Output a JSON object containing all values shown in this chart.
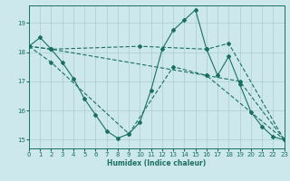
{
  "xlabel": "Humidex (Indice chaleur)",
  "bg_color": "#cce8ec",
  "grid_color": "#aacccc",
  "line_color": "#1a7060",
  "xlim": [
    0,
    23
  ],
  "ylim": [
    14.7,
    19.6
  ],
  "yticks": [
    15,
    16,
    17,
    18,
    19
  ],
  "xticks": [
    0,
    1,
    2,
    3,
    4,
    5,
    6,
    7,
    8,
    9,
    10,
    11,
    12,
    13,
    14,
    15,
    16,
    17,
    18,
    19,
    20,
    21,
    22,
    23
  ],
  "line1_x": [
    0,
    1,
    2,
    3,
    4,
    5,
    6,
    7,
    8,
    9,
    10,
    11,
    12,
    13,
    14,
    15,
    16,
    17,
    18,
    19,
    20,
    21,
    22,
    23
  ],
  "line1_y": [
    18.2,
    18.5,
    18.1,
    17.65,
    17.1,
    16.4,
    15.85,
    15.3,
    15.05,
    15.2,
    15.6,
    16.7,
    18.1,
    18.75,
    19.1,
    19.45,
    18.1,
    17.2,
    17.85,
    16.9,
    15.95,
    15.45,
    15.1,
    15.0
  ],
  "line2_x": [
    0,
    2,
    10,
    16,
    18,
    23
  ],
  "line2_y": [
    18.2,
    18.1,
    18.2,
    18.1,
    18.3,
    15.0
  ],
  "line3_x": [
    0,
    2,
    9,
    13,
    16,
    19,
    23
  ],
  "line3_y": [
    18.2,
    17.65,
    15.2,
    17.5,
    17.2,
    17.0,
    15.0
  ],
  "line4_x": [
    0,
    2,
    16,
    23
  ],
  "line4_y": [
    18.2,
    18.1,
    17.2,
    15.0
  ]
}
